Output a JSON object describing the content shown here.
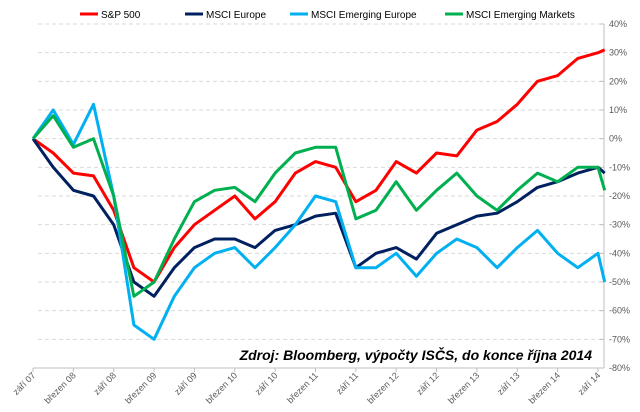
{
  "chart_data": {
    "type": "line",
    "title": "",
    "xlabel": "",
    "ylabel": "",
    "annotation": "Zdroj: Bloomberg, výpočty ISČS, do konce října 2014",
    "ylim": [
      -80,
      40
    ],
    "yticks": [
      "40%",
      "30%",
      "20%",
      "10%",
      "0%",
      "-10%",
      "-20%",
      "-30%",
      "-40%",
      "-50%",
      "-60%",
      "-70%",
      "-80%"
    ],
    "ytick_values": [
      40,
      30,
      20,
      10,
      0,
      -10,
      -20,
      -30,
      -40,
      -50,
      -60,
      -70,
      -80
    ],
    "xticks": [
      "září 07",
      "březen 08",
      "září 08",
      "březen 09",
      "září 09",
      "březen 10",
      "září 10",
      "březen 11",
      "září 11",
      "březen 12",
      "září 12",
      "březen 13",
      "září 13",
      "březen 14",
      "září 14"
    ],
    "grid": true,
    "legend_position": "top",
    "x": [
      "2007-09",
      "2007-12",
      "2008-03",
      "2008-06",
      "2008-09",
      "2008-12",
      "2009-03",
      "2009-06",
      "2009-09",
      "2009-12",
      "2010-03",
      "2010-06",
      "2010-09",
      "2010-12",
      "2011-03",
      "2011-06",
      "2011-09",
      "2011-12",
      "2012-03",
      "2012-06",
      "2012-09",
      "2012-12",
      "2013-03",
      "2013-06",
      "2013-09",
      "2013-12",
      "2014-03",
      "2014-06",
      "2014-09",
      "2014-10"
    ],
    "series": [
      {
        "name": "S&P 500",
        "color": "#ff0000",
        "values": [
          0,
          -5,
          -12,
          -13,
          -25,
          -45,
          -50,
          -38,
          -30,
          -25,
          -20,
          -28,
          -22,
          -12,
          -8,
          -10,
          -22,
          -18,
          -8,
          -12,
          -5,
          -6,
          3,
          6,
          12,
          20,
          22,
          28,
          30,
          31
        ]
      },
      {
        "name": "MSCI Europe",
        "color": "#002060",
        "values": [
          0,
          -10,
          -18,
          -20,
          -30,
          -50,
          -55,
          -45,
          -38,
          -35,
          -35,
          -38,
          -32,
          -30,
          -27,
          -26,
          -45,
          -40,
          -38,
          -42,
          -33,
          -30,
          -27,
          -26,
          -22,
          -17,
          -15,
          -12,
          -10,
          -12
        ]
      },
      {
        "name": "MSCI Emerging Europe",
        "color": "#00b0f0",
        "values": [
          0,
          10,
          -2,
          12,
          -20,
          -65,
          -70,
          -55,
          -45,
          -40,
          -38,
          -45,
          -38,
          -30,
          -20,
          -22,
          -45,
          -45,
          -40,
          -48,
          -40,
          -35,
          -38,
          -45,
          -38,
          -32,
          -40,
          -45,
          -40,
          -50
        ]
      },
      {
        "name": "MSCI Emerging Markets",
        "color": "#00b050",
        "values": [
          0,
          8,
          -3,
          0,
          -20,
          -55,
          -50,
          -35,
          -22,
          -18,
          -17,
          -22,
          -12,
          -5,
          -3,
          -3,
          -28,
          -25,
          -15,
          -25,
          -18,
          -12,
          -20,
          -25,
          -18,
          -12,
          -15,
          -10,
          -10,
          -18
        ]
      }
    ]
  }
}
